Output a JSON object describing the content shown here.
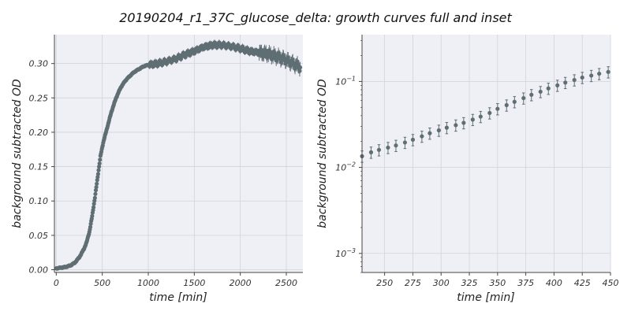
{
  "figure": {
    "title": "20190204_r1_37C_glucose_delta: growth curves full and inset"
  },
  "colors": {
    "marker": "#5f6e73",
    "panel_bg": "#eff0f5",
    "grid": "#d2d3d9",
    "axis": "#444444"
  },
  "chart_data": [
    {
      "type": "scatter",
      "panel": "full",
      "xlabel": "time [min]",
      "ylabel": "background subtracted OD",
      "xlim": [
        -20,
        2680
      ],
      "ylim": [
        -0.004,
        0.342
      ],
      "xscale": "linear",
      "yscale": "linear",
      "xticks": [
        0,
        500,
        1000,
        1500,
        2000,
        2500
      ],
      "xtick_labels": [
        "0",
        "500",
        "1000",
        "1500",
        "2000",
        "2500"
      ],
      "yticks": [
        0.0,
        0.05,
        0.1,
        0.15,
        0.2,
        0.25,
        0.3
      ],
      "ytick_labels": [
        "0.00",
        "0.05",
        "0.10",
        "0.15",
        "0.20",
        "0.25",
        "0.30"
      ],
      "grid": true,
      "error_bars": true,
      "points": [
        [
          0,
          0.002
        ],
        [
          50,
          0.003
        ],
        [
          100,
          0.004
        ],
        [
          150,
          0.006
        ],
        [
          200,
          0.01
        ],
        [
          250,
          0.018
        ],
        [
          300,
          0.03
        ],
        [
          330,
          0.04
        ],
        [
          360,
          0.055
        ],
        [
          390,
          0.078
        ],
        [
          420,
          0.105
        ],
        [
          450,
          0.135
        ],
        [
          480,
          0.165
        ],
        [
          510,
          0.185
        ],
        [
          540,
          0.2
        ],
        [
          570,
          0.215
        ],
        [
          600,
          0.23
        ],
        [
          650,
          0.25
        ],
        [
          700,
          0.265
        ],
        [
          750,
          0.275
        ],
        [
          800,
          0.282
        ],
        [
          850,
          0.288
        ],
        [
          900,
          0.292
        ],
        [
          950,
          0.296
        ],
        [
          1000,
          0.298
        ],
        [
          1100,
          0.3
        ],
        [
          1200,
          0.303
        ],
        [
          1300,
          0.307
        ],
        [
          1400,
          0.313
        ],
        [
          1500,
          0.318
        ],
        [
          1600,
          0.324
        ],
        [
          1700,
          0.327
        ],
        [
          1800,
          0.327
        ],
        [
          1900,
          0.325
        ],
        [
          2000,
          0.322
        ],
        [
          2100,
          0.318
        ],
        [
          2200,
          0.316
        ],
        [
          2300,
          0.314
        ],
        [
          2400,
          0.31
        ],
        [
          2500,
          0.305
        ],
        [
          2600,
          0.298
        ],
        [
          2650,
          0.295
        ]
      ]
    },
    {
      "type": "scatter",
      "panel": "inset",
      "xlabel": "time [min]",
      "ylabel": "background subtracted OD",
      "xlim": [
        230,
        450
      ],
      "ylim": [
        0.0006,
        0.35
      ],
      "xscale": "linear",
      "yscale": "log",
      "xticks": [
        250,
        275,
        300,
        325,
        350,
        375,
        400,
        425,
        450
      ],
      "xtick_labels": [
        "250",
        "275",
        "300",
        "325",
        "350",
        "375",
        "400",
        "425",
        "450"
      ],
      "yticks": [
        0.001,
        0.01,
        0.1
      ],
      "ytick_base": "10",
      "ytick_exponents": [
        "−3",
        "−2",
        "−1"
      ],
      "grid": true,
      "error_bars": true,
      "points": [
        [
          230,
          0.0135
        ],
        [
          238,
          0.015
        ],
        [
          245,
          0.016
        ],
        [
          253,
          0.017
        ],
        [
          260,
          0.018
        ],
        [
          268,
          0.0195
        ],
        [
          275,
          0.021
        ],
        [
          283,
          0.023
        ],
        [
          290,
          0.025
        ],
        [
          298,
          0.027
        ],
        [
          305,
          0.029
        ],
        [
          313,
          0.031
        ],
        [
          320,
          0.033
        ],
        [
          328,
          0.036
        ],
        [
          335,
          0.039
        ],
        [
          343,
          0.043
        ],
        [
          350,
          0.048
        ],
        [
          358,
          0.053
        ],
        [
          365,
          0.058
        ],
        [
          373,
          0.064
        ],
        [
          380,
          0.07
        ],
        [
          388,
          0.076
        ],
        [
          395,
          0.083
        ],
        [
          403,
          0.09
        ],
        [
          410,
          0.097
        ],
        [
          418,
          0.104
        ],
        [
          425,
          0.111
        ],
        [
          433,
          0.117
        ],
        [
          440,
          0.123
        ],
        [
          448,
          0.129
        ]
      ]
    }
  ]
}
